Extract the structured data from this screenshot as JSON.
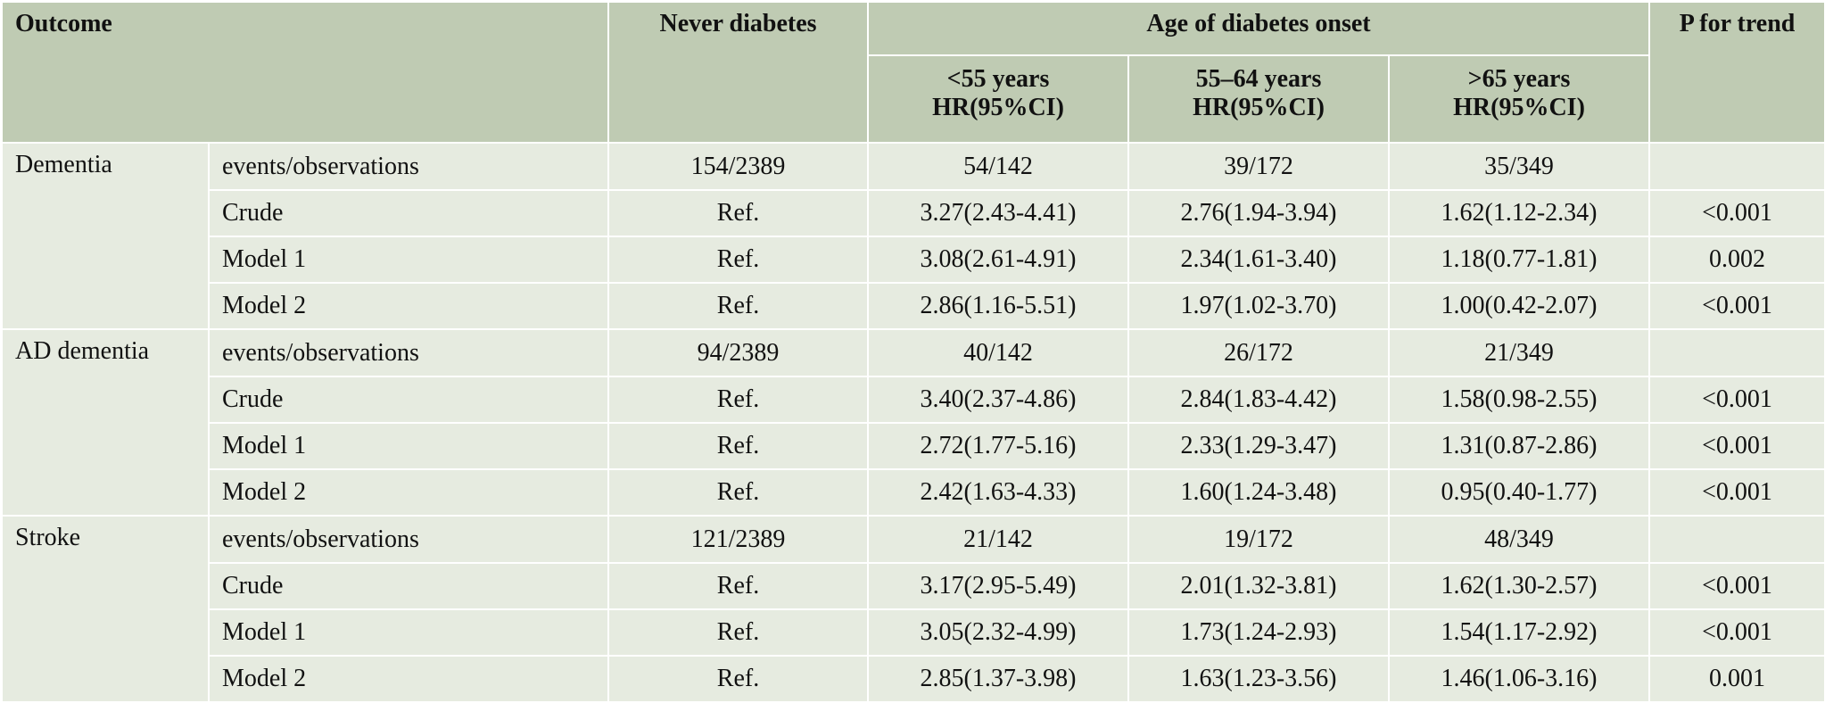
{
  "header": {
    "outcome": "Outcome",
    "never_diabetes": "Never diabetes",
    "age_group": "Age of diabetes onset",
    "p_trend": "P for trend",
    "col_lt55": "<55 years",
    "col_55_64": "55–64 years",
    "col_gt65": ">65 years",
    "hr_label": "HR(95%CI)"
  },
  "groups": [
    {
      "outcome": "Dementia",
      "rows": [
        {
          "label": "events/observations",
          "never": "154/2389",
          "lt55": "54/142",
          "mid": "39/172",
          "gt65": "35/349",
          "p": ""
        },
        {
          "label": "Crude",
          "never": "Ref.",
          "lt55": "3.27(2.43-4.41)",
          "mid": "2.76(1.94-3.94)",
          "gt65": "1.62(1.12-2.34)",
          "p": "<0.001"
        },
        {
          "label": "Model 1",
          "never": "Ref.",
          "lt55": "3.08(2.61-4.91)",
          "mid": "2.34(1.61-3.40)",
          "gt65": "1.18(0.77-1.81)",
          "p": "0.002"
        },
        {
          "label": "Model 2",
          "never": "Ref.",
          "lt55": "2.86(1.16-5.51)",
          "mid": "1.97(1.02-3.70)",
          "gt65": "1.00(0.42-2.07)",
          "p": "<0.001"
        }
      ]
    },
    {
      "outcome": "AD dementia",
      "rows": [
        {
          "label": "events/observations",
          "never": "94/2389",
          "lt55": "40/142",
          "mid": "26/172",
          "gt65": "21/349",
          "p": ""
        },
        {
          "label": "Crude",
          "never": "Ref.",
          "lt55": "3.40(2.37-4.86)",
          "mid": "2.84(1.83-4.42)",
          "gt65": "1.58(0.98-2.55)",
          "p": "<0.001"
        },
        {
          "label": "Model 1",
          "never": "Ref.",
          "lt55": "2.72(1.77-5.16)",
          "mid": "2.33(1.29-3.47)",
          "gt65": "1.31(0.87-2.86)",
          "p": "<0.001"
        },
        {
          "label": "Model 2",
          "never": "Ref.",
          "lt55": "2.42(1.63-4.33)",
          "mid": "1.60(1.24-3.48)",
          "gt65": "0.95(0.40-1.77)",
          "p": "<0.001"
        }
      ]
    },
    {
      "outcome": "Stroke",
      "rows": [
        {
          "label": "events/observations",
          "never": "121/2389",
          "lt55": "21/142",
          "mid": "19/172",
          "gt65": "48/349",
          "p": ""
        },
        {
          "label": "Crude",
          "never": "Ref.",
          "lt55": "3.17(2.95-5.49)",
          "mid": "2.01(1.32-3.81)",
          "gt65": "1.62(1.30-2.57)",
          "p": "<0.001"
        },
        {
          "label": "Model 1",
          "never": "Ref.",
          "lt55": "3.05(2.32-4.99)",
          "mid": "1.73(1.24-2.93)",
          "gt65": "1.54(1.17-2.92)",
          "p": "<0.001"
        },
        {
          "label": "Model 2",
          "never": "Ref.",
          "lt55": "2.85(1.37-3.98)",
          "mid": "1.63(1.23-3.56)",
          "gt65": "1.46(1.06-3.16)",
          "p": "0.001"
        }
      ]
    }
  ]
}
